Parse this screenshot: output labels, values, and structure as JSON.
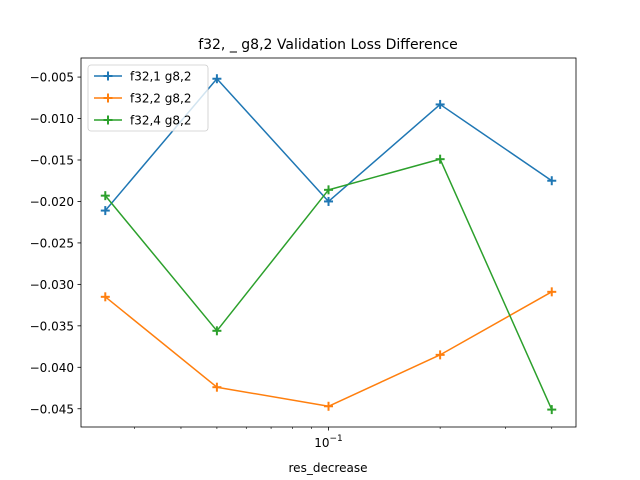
{
  "chart_data": {
    "type": "line",
    "title": "f32, _ g8,2 Validation Loss Difference",
    "xlabel": "res_decrease",
    "ylabel": "",
    "xscale": "log",
    "x": [
      0.025,
      0.05,
      0.1,
      0.2,
      0.4
    ],
    "xlim": [
      0.0215,
      0.465
    ],
    "ylim": [
      -0.0472,
      -0.0027
    ],
    "x_major_ticks": [
      {
        "value": 0.1,
        "label": "10^-1"
      }
    ],
    "x_minor_ticks": [
      0.03,
      0.04,
      0.05,
      0.06,
      0.07,
      0.08,
      0.09,
      0.2,
      0.3,
      0.4
    ],
    "y_ticks": [
      {
        "value": -0.045,
        "label": "−0.045"
      },
      {
        "value": -0.04,
        "label": "−0.040"
      },
      {
        "value": -0.035,
        "label": "−0.035"
      },
      {
        "value": -0.03,
        "label": "−0.030"
      },
      {
        "value": -0.025,
        "label": "−0.025"
      },
      {
        "value": -0.02,
        "label": "−0.020"
      },
      {
        "value": -0.015,
        "label": "−0.015"
      },
      {
        "value": -0.01,
        "label": "−0.010"
      },
      {
        "value": -0.005,
        "label": "−0.005"
      }
    ],
    "grid": false,
    "legend_position": "top-left",
    "series": [
      {
        "name": "f32,1 g8,2",
        "color": "#1f77b4",
        "marker": "plus",
        "values": [
          -0.0211,
          -0.0052,
          -0.02,
          -0.0083,
          -0.0175
        ]
      },
      {
        "name": "f32,2 g8,2",
        "color": "#ff7f0e",
        "marker": "plus",
        "values": [
          -0.0315,
          -0.0424,
          -0.0447,
          -0.0385,
          -0.0309
        ]
      },
      {
        "name": "f32,4 g8,2",
        "color": "#2ca02c",
        "marker": "plus",
        "values": [
          -0.0193,
          -0.0356,
          -0.0186,
          -0.0149,
          -0.0451
        ]
      }
    ]
  }
}
